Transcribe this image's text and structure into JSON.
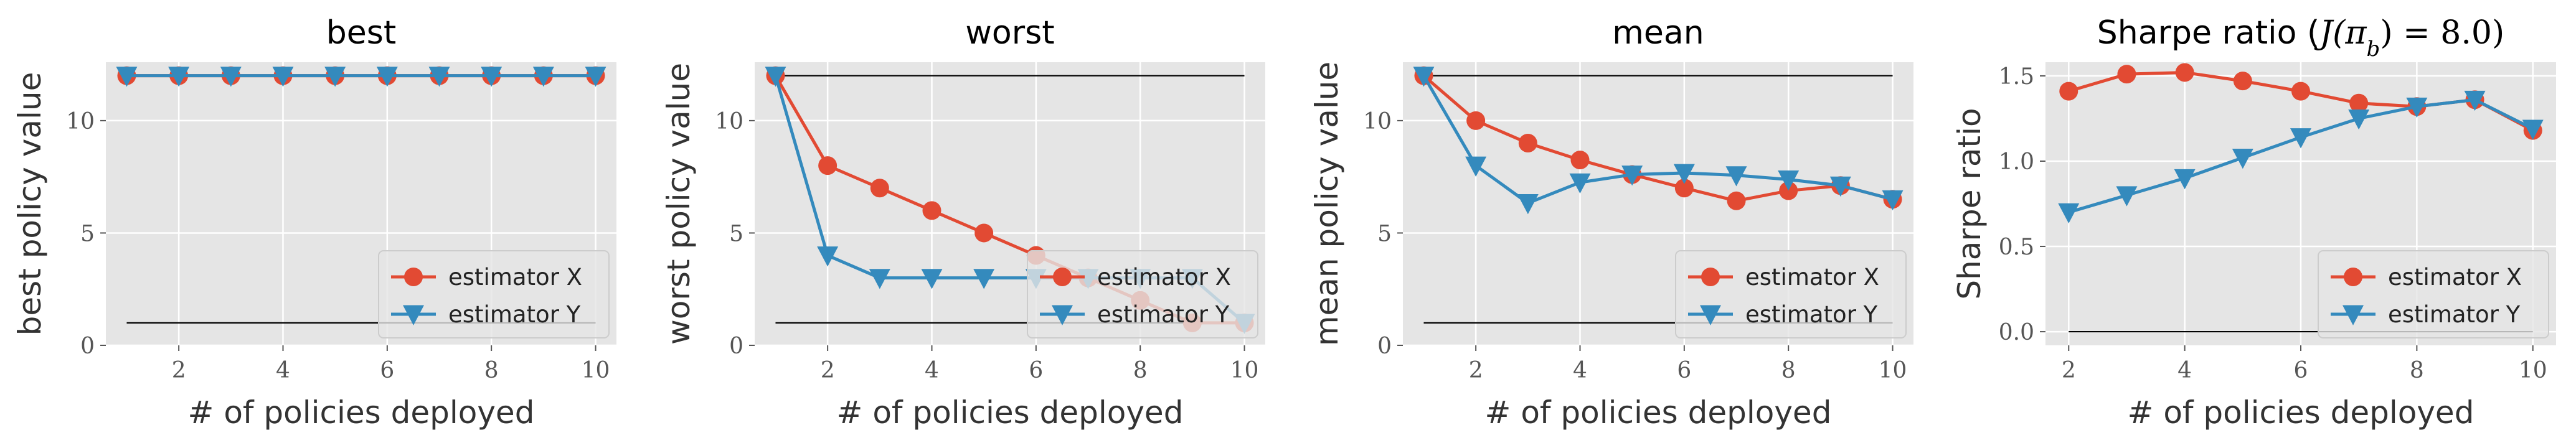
{
  "colors": {
    "background": "#e5e5e5",
    "grid": "#ffffff",
    "estimator_x": "#e24a33",
    "estimator_y": "#348abd",
    "reference_line": "#000000"
  },
  "chart_data": [
    {
      "type": "line",
      "title": "best",
      "xlabel": "# of policies deployed",
      "ylabel": "best policy value",
      "x": [
        1,
        2,
        3,
        4,
        5,
        6,
        7,
        8,
        9,
        10
      ],
      "xticks": [
        2,
        4,
        6,
        8,
        10
      ],
      "xtick_labels": [
        "2",
        "4",
        "6",
        "8",
        "10"
      ],
      "yticks": [
        0,
        5,
        10
      ],
      "ytick_labels": [
        "0",
        "5",
        "10"
      ],
      "xlim": [
        0.6,
        10.4
      ],
      "ylim": [
        0,
        12.6
      ],
      "grid": true,
      "legend_position": "lower-right",
      "reference_lines": [
        {
          "y": 12,
          "x_from": 1,
          "x_to": 10,
          "color": "#000000"
        },
        {
          "y": 1,
          "x_from": 1,
          "x_to": 10,
          "color": "#000000"
        }
      ],
      "series": [
        {
          "name": "estimator X",
          "marker": "circle",
          "color": "#e24a33",
          "values": [
            12,
            12,
            12,
            12,
            12,
            12,
            12,
            12,
            12,
            12
          ]
        },
        {
          "name": "estimator Y",
          "marker": "triangle-down",
          "color": "#348abd",
          "values": [
            12,
            12,
            12,
            12,
            12,
            12,
            12,
            12,
            12,
            12
          ]
        }
      ]
    },
    {
      "type": "line",
      "title": "worst",
      "xlabel": "# of policies deployed",
      "ylabel": "worst policy value",
      "x": [
        1,
        2,
        3,
        4,
        5,
        6,
        7,
        8,
        9,
        10
      ],
      "xticks": [
        2,
        4,
        6,
        8,
        10
      ],
      "xtick_labels": [
        "2",
        "4",
        "6",
        "8",
        "10"
      ],
      "yticks": [
        0,
        5,
        10
      ],
      "ytick_labels": [
        "0",
        "5",
        "10"
      ],
      "xlim": [
        0.6,
        10.4
      ],
      "ylim": [
        0,
        12.6
      ],
      "grid": true,
      "legend_position": "lower-right",
      "reference_lines": [
        {
          "y": 12,
          "x_from": 1,
          "x_to": 10,
          "color": "#000000"
        },
        {
          "y": 1,
          "x_from": 1,
          "x_to": 10,
          "color": "#000000"
        }
      ],
      "series": [
        {
          "name": "estimator X",
          "marker": "circle",
          "color": "#e24a33",
          "values": [
            12,
            8,
            7,
            6,
            5,
            4,
            3,
            2,
            1,
            1
          ]
        },
        {
          "name": "estimator Y",
          "marker": "triangle-down",
          "color": "#348abd",
          "values": [
            12,
            4,
            3,
            3,
            3,
            3,
            3,
            3,
            3,
            1
          ]
        }
      ]
    },
    {
      "type": "line",
      "title": "mean",
      "xlabel": "# of policies deployed",
      "ylabel": "mean policy value",
      "x": [
        1,
        2,
        3,
        4,
        5,
        6,
        7,
        8,
        9,
        10
      ],
      "xticks": [
        2,
        4,
        6,
        8,
        10
      ],
      "xtick_labels": [
        "2",
        "4",
        "6",
        "8",
        "10"
      ],
      "yticks": [
        0,
        5,
        10
      ],
      "ytick_labels": [
        "0",
        "5",
        "10"
      ],
      "xlim": [
        0.6,
        10.4
      ],
      "ylim": [
        0,
        12.6
      ],
      "grid": true,
      "legend_position": "lower-right",
      "reference_lines": [
        {
          "y": 12,
          "x_from": 1,
          "x_to": 10,
          "color": "#000000"
        },
        {
          "y": 1,
          "x_from": 1,
          "x_to": 10,
          "color": "#000000"
        }
      ],
      "series": [
        {
          "name": "estimator X",
          "marker": "circle",
          "color": "#e24a33",
          "values": [
            12,
            10,
            9,
            8.25,
            7.6,
            7,
            6.43,
            6.88,
            7.11,
            6.5
          ]
        },
        {
          "name": "estimator Y",
          "marker": "triangle-down",
          "color": "#348abd",
          "values": [
            12,
            8,
            6.33,
            7.25,
            7.6,
            7.67,
            7.57,
            7.38,
            7.11,
            6.5
          ]
        }
      ]
    },
    {
      "type": "line",
      "title": "Sharpe ratio (J(π_b) = 8.0)",
      "title_parts": {
        "prefix": "Sharpe ratio (",
        "math": "J(π",
        "subscript": "b",
        "suffix": ") = 8.0)"
      },
      "xlabel": "# of policies deployed",
      "ylabel": "Sharpe ratio",
      "x": [
        2,
        3,
        4,
        5,
        6,
        7,
        8,
        9,
        10
      ],
      "xticks": [
        2,
        4,
        6,
        8,
        10
      ],
      "xtick_labels": [
        "2",
        "4",
        "6",
        "8",
        "10"
      ],
      "yticks": [
        0,
        0.5,
        1,
        1.5
      ],
      "ytick_labels": [
        "0.0",
        "0.5",
        "1.0",
        "1.5"
      ],
      "xlim": [
        1.6,
        10.4
      ],
      "ylim": [
        -0.08,
        1.58
      ],
      "grid": true,
      "legend_position": "lower-right",
      "reference_lines": [
        {
          "y": 0,
          "x_from": 2,
          "x_to": 10,
          "color": "#000000"
        }
      ],
      "series": [
        {
          "name": "estimator X",
          "marker": "circle",
          "color": "#e24a33",
          "values": [
            1.41,
            1.51,
            1.52,
            1.47,
            1.41,
            1.34,
            1.32,
            1.36,
            1.18
          ]
        },
        {
          "name": "estimator Y",
          "marker": "triangle-down",
          "color": "#348abd",
          "values": [
            0.7,
            0.8,
            0.9,
            1.02,
            1.14,
            1.25,
            1.32,
            1.36,
            1.19
          ]
        }
      ]
    }
  ]
}
